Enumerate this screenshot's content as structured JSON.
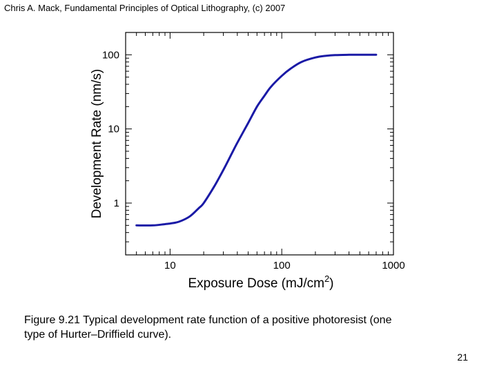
{
  "header": {
    "text": "Chris A. Mack, Fundamental Principles of Optical Lithography, (c) 2007"
  },
  "caption": {
    "line1": "Figure 9.21  Typical development rate function of a positive photoresist (one",
    "line2": "type of Hurter–Driffield curve)."
  },
  "page_number": "21",
  "chart_data": {
    "type": "line",
    "xlabel": "Exposure Dose (mJ/cm2)",
    "ylabel": "Development Rate (nm/s)",
    "x_scale": "log",
    "y_scale": "log",
    "xlim": [
      4,
      1000
    ],
    "ylim": [
      0.2,
      200
    ],
    "x_ticks": [
      {
        "value": 10,
        "label": "10"
      },
      {
        "value": 100,
        "label": "100"
      },
      {
        "value": 1000,
        "label": "1000"
      }
    ],
    "y_ticks": [
      {
        "value": 1,
        "label": "1"
      },
      {
        "value": 10,
        "label": "10"
      },
      {
        "value": 100,
        "label": "100"
      }
    ],
    "grid": false,
    "series": [
      {
        "color": "#1a1aa6",
        "x": [
          5,
          7,
          9,
          10,
          12,
          15,
          18,
          20,
          25,
          30,
          35,
          40,
          50,
          60,
          70,
          80,
          100,
          120,
          150,
          200,
          250,
          300,
          400,
          500,
          700
        ],
        "y": [
          0.5,
          0.5,
          0.52,
          0.53,
          0.56,
          0.66,
          0.85,
          1.0,
          1.7,
          2.8,
          4.4,
          6.5,
          12,
          20,
          28,
          37,
          52,
          65,
          80,
          92,
          97,
          99,
          100,
          100,
          100
        ]
      }
    ]
  }
}
